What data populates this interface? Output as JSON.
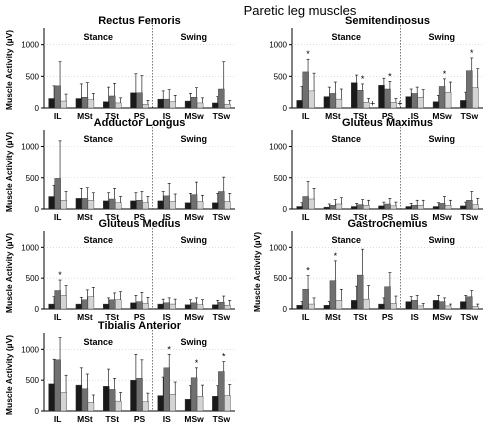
{
  "title": "Paretic leg muscles",
  "colors": {
    "bar1": "#1a1a1a",
    "bar2": "#707070",
    "bar3": "#d4d4d4"
  },
  "chart_data": [
    {
      "type": "bar",
      "title": "Rectus Femoris",
      "ylabel": "Muscle Activity (µV)",
      "yticks": [
        "0",
        "500",
        "1000"
      ],
      "ylim": [
        0,
        1200
      ],
      "phases": [
        "Stance",
        "Swing"
      ],
      "categories": [
        "IL",
        "MSt",
        "TSt",
        "PS",
        "IS",
        "MSw",
        "TSw"
      ],
      "series": [
        {
          "values": [
            150,
            150,
            100,
            240,
            140,
            110,
            80
          ],
          "errors": [
            200,
            230,
            230,
            300,
            130,
            120,
            100
          ]
        },
        {
          "values": [
            350,
            170,
            190,
            240,
            140,
            170,
            300
          ],
          "errors": [
            380,
            230,
            200,
            270,
            150,
            150,
            430
          ]
        },
        {
          "values": [
            110,
            130,
            80,
            60,
            100,
            80,
            60
          ],
          "errors": [
            110,
            100,
            80,
            60,
            100,
            80,
            60
          ]
        }
      ],
      "markers": []
    },
    {
      "type": "bar",
      "title": "Semitendinosus",
      "ylabel": "",
      "yticks": [
        "0",
        "500",
        "1000"
      ],
      "ylim": [
        0,
        1200
      ],
      "phases": [
        "Stance",
        "Swing"
      ],
      "categories": [
        "IL",
        "MSt",
        "TSt",
        "PS",
        "IS",
        "MSw",
        "TSw"
      ],
      "series": [
        {
          "values": [
            120,
            180,
            400,
            360,
            180,
            100,
            120
          ],
          "errors": [
            220,
            150,
            120,
            110,
            120,
            100,
            130
          ]
        },
        {
          "values": [
            570,
            230,
            280,
            300,
            230,
            340,
            590
          ],
          "errors": [
            200,
            180,
            100,
            120,
            100,
            120,
            200
          ]
        },
        {
          "values": [
            270,
            140,
            90,
            90,
            170,
            250,
            320
          ],
          "errors": [
            280,
            160,
            60,
            60,
            120,
            160,
            300
          ]
        }
      ],
      "markers": [
        {
          "category": 0,
          "series": 1,
          "symbol": "*"
        },
        {
          "category": 2,
          "series": 1,
          "symbol": "*"
        },
        {
          "category": 2,
          "series": 2,
          "symbol": "+"
        },
        {
          "category": 3,
          "series": 1,
          "symbol": "*"
        },
        {
          "category": 3,
          "series": 2,
          "symbol": "+"
        },
        {
          "category": 5,
          "series": 1,
          "symbol": "*"
        },
        {
          "category": 6,
          "series": 1,
          "symbol": "*"
        }
      ]
    },
    {
      "type": "bar",
      "title": "Adductor Longus",
      "ylabel": "Muscle Activity (µV)",
      "yticks": [
        "0",
        "500",
        "1000"
      ],
      "ylim": [
        0,
        1200
      ],
      "phases": [
        "Stance",
        "Swing"
      ],
      "categories": [
        "IL",
        "MSt",
        "TSt",
        "PS",
        "IS",
        "MSw",
        "TSw"
      ],
      "series": [
        {
          "values": [
            200,
            170,
            130,
            130,
            130,
            100,
            100
          ],
          "errors": [
            180,
            160,
            130,
            130,
            150,
            150,
            150
          ]
        },
        {
          "values": [
            490,
            170,
            160,
            140,
            210,
            230,
            280
          ],
          "errors": [
            600,
            170,
            170,
            140,
            200,
            200,
            230
          ]
        },
        {
          "values": [
            140,
            140,
            100,
            100,
            120,
            120,
            120
          ],
          "errors": [
            140,
            120,
            100,
            100,
            120,
            100,
            130
          ]
        }
      ],
      "markers": []
    },
    {
      "type": "bar",
      "title": "Gluteus Maximus",
      "ylabel": "",
      "yticks": [
        "0",
        "500",
        "1000"
      ],
      "ylim": [
        0,
        1200
      ],
      "phases": [
        "Stance",
        "Swing"
      ],
      "categories": [
        "IL",
        "MSt",
        "TSt",
        "PS",
        "IS",
        "MSw",
        "TSw"
      ],
      "series": [
        {
          "values": [
            40,
            30,
            40,
            50,
            40,
            40,
            50
          ],
          "errors": [
            60,
            50,
            50,
            60,
            50,
            60,
            60
          ]
        },
        {
          "values": [
            200,
            60,
            70,
            80,
            60,
            90,
            140
          ],
          "errors": [
            240,
            90,
            80,
            90,
            80,
            110,
            140
          ]
        },
        {
          "values": [
            160,
            80,
            60,
            50,
            60,
            60,
            70
          ],
          "errors": [
            170,
            100,
            80,
            60,
            80,
            80,
            100
          ]
        }
      ],
      "markers": []
    },
    {
      "type": "bar",
      "title": "Gluteus Medius",
      "ylabel": "Muscle Activity (µV)",
      "yticks": [
        "0",
        "500",
        "1000"
      ],
      "ylim": [
        0,
        1200
      ],
      "phases": [
        "Stance",
        "Swing"
      ],
      "categories": [
        "IL",
        "MSt",
        "TSt",
        "PS",
        "IS",
        "MSw",
        "TSw"
      ],
      "series": [
        {
          "values": [
            80,
            80,
            80,
            100,
            80,
            70,
            70
          ],
          "errors": [
            120,
            110,
            100,
            120,
            80,
            80,
            70
          ]
        },
        {
          "values": [
            300,
            150,
            150,
            120,
            100,
            100,
            110
          ],
          "errors": [
            170,
            160,
            110,
            150,
            80,
            80,
            100
          ]
        },
        {
          "values": [
            220,
            200,
            150,
            90,
            80,
            70,
            60
          ],
          "errors": [
            160,
            150,
            130,
            100,
            80,
            80,
            80
          ]
        }
      ],
      "markers": [
        {
          "category": 0,
          "series": 1,
          "symbol": "*"
        }
      ]
    },
    {
      "type": "bar",
      "title": "Gastrocnemius",
      "ylabel": "Muscle Activity (µV)",
      "yticks": [
        "0",
        "500",
        "1000"
      ],
      "ylim": [
        0,
        1200
      ],
      "phases": [
        "Stance",
        "Swing"
      ],
      "categories": [
        "IL",
        "MSt",
        "TSt",
        "PS",
        "IS",
        "MSw",
        "TSw"
      ],
      "series": [
        {
          "values": [
            60,
            60,
            140,
            80,
            120,
            140,
            120
          ],
          "errors": [
            60,
            60,
            230,
            100,
            80,
            80,
            100
          ]
        },
        {
          "values": [
            320,
            460,
            550,
            360,
            140,
            120,
            200
          ],
          "errors": [
            220,
            320,
            420,
            230,
            80,
            60,
            100
          ]
        },
        {
          "values": [
            80,
            140,
            160,
            90,
            50,
            50,
            40
          ],
          "errors": [
            100,
            180,
            220,
            120,
            40,
            30,
            40
          ]
        }
      ],
      "markers": [
        {
          "category": 0,
          "series": 1,
          "symbol": "*"
        },
        {
          "category": 1,
          "series": 1,
          "symbol": "*"
        }
      ]
    },
    {
      "type": "bar",
      "title": "Tibialis Anterior",
      "ylabel": "Muscle Activity (µV)",
      "yticks": [
        "0",
        "500",
        "1000"
      ],
      "ylim": [
        0,
        1200
      ],
      "phases": [
        "Stance",
        "Swing"
      ],
      "categories": [
        "IL",
        "MSt",
        "TSt",
        "PS",
        "IS",
        "MSw",
        "TSw"
      ],
      "series": [
        {
          "values": [
            440,
            420,
            400,
            500,
            250,
            190,
            240
          ],
          "errors": [
            400,
            280,
            280,
            420,
            300,
            220,
            170
          ]
        },
        {
          "values": [
            830,
            360,
            350,
            530,
            700,
            540,
            640
          ],
          "errors": [
            360,
            240,
            180,
            300,
            220,
            160,
            160
          ]
        },
        {
          "values": [
            300,
            140,
            160,
            150,
            270,
            240,
            250
          ],
          "errors": [
            280,
            120,
            140,
            140,
            200,
            180,
            180
          ]
        }
      ],
      "markers": [
        {
          "category": 4,
          "series": 1,
          "symbol": "*"
        },
        {
          "category": 5,
          "series": 1,
          "symbol": "*"
        },
        {
          "category": 6,
          "series": 1,
          "symbol": "*"
        }
      ]
    }
  ]
}
